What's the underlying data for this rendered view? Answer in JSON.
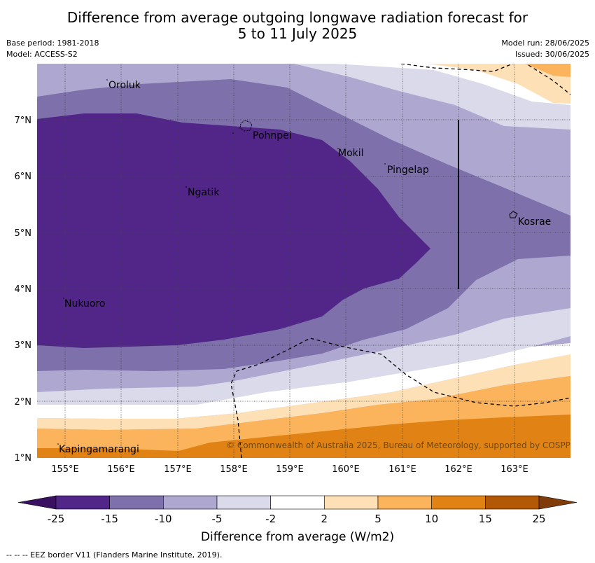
{
  "title_line1": "Difference from average outgoing longwave radiation forecast for",
  "title_line2": "5 to 11 July 2025",
  "base_period": "Base period: 1981-2018",
  "model": "Model: ACCESS-S2",
  "model_run": "Model run: 28/06/2025",
  "issued": "Issued: 30/06/2025",
  "x_ticks": [
    "155°E",
    "156°E",
    "157°E",
    "158°E",
    "159°E",
    "160°E",
    "161°E",
    "162°E",
    "163°E"
  ],
  "y_ticks": [
    "1°N",
    "2°N",
    "3°N",
    "4°N",
    "5°N",
    "6°N",
    "7°N"
  ],
  "places": {
    "oroluk": "Oroluk",
    "pohnpei": "Pohnpei",
    "mokil": "Mokil",
    "pingelap": "Pingelap",
    "ngatik": "Ngatik",
    "kosrae": "Kosrae",
    "nukuoro": "Nukuoro",
    "kapingamarangi": "Kapingamarangi"
  },
  "copyright": "© Commonwealth of Australia 2025, Bureau of Meteorology, supported by COSPPac",
  "colorbar": {
    "title": "Difference from average (W/m2)",
    "labels": [
      "-25",
      "-15",
      "-10",
      "-5",
      "-2",
      "2",
      "5",
      "10",
      "15",
      "25"
    ],
    "colors": [
      "#3a1060",
      "#512688",
      "#7e70ab",
      "#aea8d0",
      "#dadaeb",
      "#ffffff",
      "#fde0b6",
      "#fbb35c",
      "#e08214",
      "#b35806",
      "#7f3b08"
    ]
  },
  "footer": "-- -- -- EEZ border V11 (Flanders Marine Institute, 2019)."
}
